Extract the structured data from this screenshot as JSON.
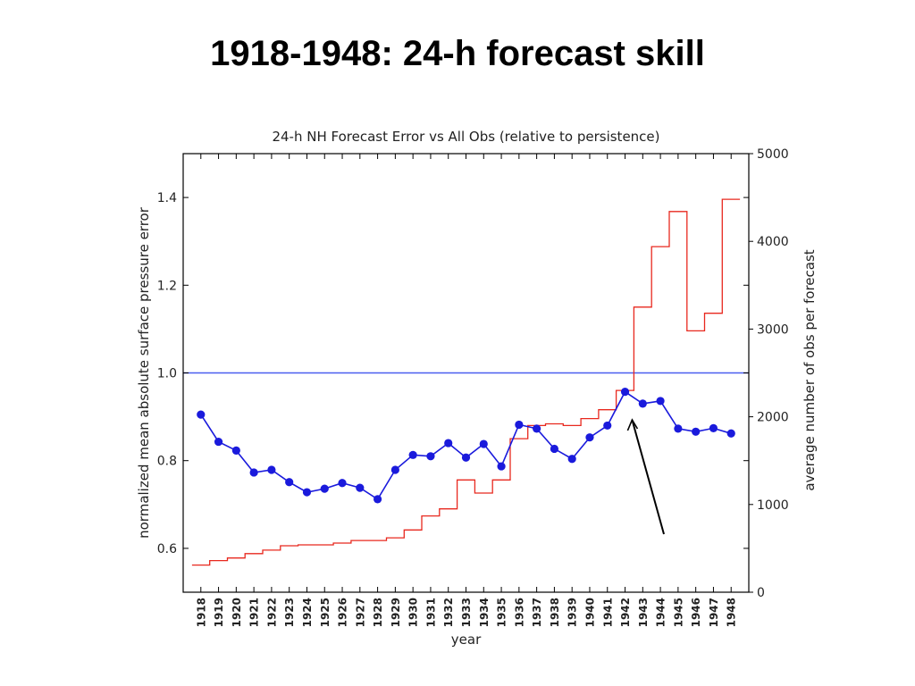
{
  "slide": {
    "title": "1918-1948: 24-h forecast skill"
  },
  "chart_data": {
    "type": "line",
    "title": "24-h NH Forecast Error vs All Obs (relative to persistence)",
    "xlabel": "year",
    "ylabel": "normalized mean absolute surface pressure error",
    "y2label": "average number of obs per forecast",
    "x": [
      1918,
      1919,
      1920,
      1921,
      1922,
      1923,
      1924,
      1925,
      1926,
      1927,
      1928,
      1929,
      1930,
      1931,
      1932,
      1933,
      1934,
      1935,
      1936,
      1937,
      1938,
      1939,
      1940,
      1941,
      1942,
      1943,
      1944,
      1945,
      1946,
      1947,
      1948
    ],
    "ylim": [
      0.5,
      1.5
    ],
    "y2lim": [
      0,
      5000
    ],
    "yticks": [
      0.6,
      0.8,
      1.0,
      1.2,
      1.4
    ],
    "y2ticks": [
      0,
      1000,
      2000,
      3000,
      4000,
      5000
    ],
    "series": [
      {
        "axis": "left",
        "style": "line-markers",
        "color": "#1a1adc",
        "values": [
          0.905,
          0.843,
          0.823,
          0.773,
          0.779,
          0.751,
          0.728,
          0.736,
          0.749,
          0.738,
          0.712,
          0.779,
          0.813,
          0.81,
          0.84,
          0.807,
          0.838,
          0.787,
          0.882,
          0.873,
          0.827,
          0.804,
          0.853,
          0.88,
          0.957,
          0.93,
          0.936,
          0.873,
          0.866,
          0.874,
          0.862
        ]
      },
      {
        "axis": "right",
        "style": "step",
        "color": "#e8281e",
        "values": [
          310,
          360,
          390,
          440,
          480,
          530,
          540,
          540,
          560,
          590,
          590,
          620,
          710,
          870,
          950,
          1280,
          1130,
          1280,
          1750,
          1900,
          1920,
          1900,
          1980,
          2080,
          2300,
          3250,
          3940,
          4340,
          2980,
          3180,
          4480
        ]
      }
    ],
    "reference_line": {
      "y": 1.0,
      "color": "#4a5ef0"
    },
    "annotation": {
      "type": "arrow",
      "target_year": 1942.5,
      "color": "#000000"
    }
  }
}
